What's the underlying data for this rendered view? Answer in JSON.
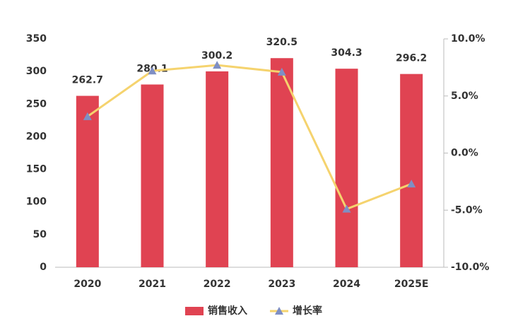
{
  "chart_data": {
    "type": "combo",
    "categories": [
      "2020",
      "2021",
      "2022",
      "2023",
      "2024",
      "2025E"
    ],
    "series": [
      {
        "name": "销售收入",
        "type": "bar",
        "color": "#e04352",
        "values": [
          262.7,
          280.1,
          300.2,
          320.5,
          304.3,
          296.2
        ]
      },
      {
        "name": "增长率",
        "type": "line",
        "axis": "y2",
        "color": "#f5d36e",
        "marker_color": "#7f8fc4",
        "values": [
          3.2,
          7.2,
          7.7,
          7.1,
          -4.9,
          -2.7
        ]
      }
    ],
    "ylim": [
      0,
      350
    ],
    "yticks": [
      0,
      50,
      100,
      150,
      200,
      250,
      300,
      350
    ],
    "y2lim": [
      -10,
      10
    ],
    "y2ticks": [
      {
        "value": -10,
        "label": "-10.0%"
      },
      {
        "value": -5,
        "label": "-5.0%"
      },
      {
        "value": 0,
        "label": "0.0%"
      },
      {
        "value": 5,
        "label": "5.0%"
      },
      {
        "value": 10,
        "label": "10.0%"
      }
    ],
    "legend": "bottom"
  }
}
